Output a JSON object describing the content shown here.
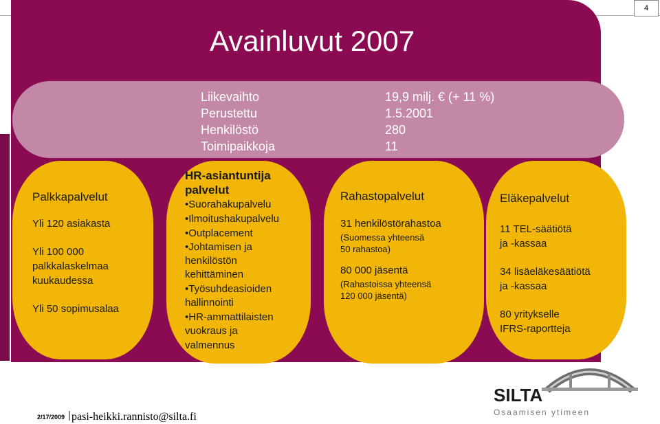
{
  "page_number": "4",
  "title": "Avainluvut 2007",
  "info": {
    "rows": [
      {
        "label": "Liikevaihto",
        "value": "19,9 milj. € (+ 11 %)"
      },
      {
        "label": "Perustettu",
        "value": "1.5.2001"
      },
      {
        "label": "Henkilöstö",
        "value": "280"
      },
      {
        "label": "Toimipaikkoja",
        "value": "11"
      }
    ]
  },
  "cards": {
    "palkka": {
      "heading": "Palkkapalvelut",
      "lines": [
        "Yli 120 asiakasta",
        "Yli 100 000",
        "palkkalaskelmaa",
        "kuukaudessa",
        "Yli 50 sopimusalaa"
      ]
    },
    "hr": {
      "heading1": "HR-asiantuntija",
      "heading2": "palvelut",
      "lines": [
        "•Suorahakupalvelu",
        "•Ilmoitushakupalvelu",
        "•Outplacement",
        "•Johtamisen ja",
        "henkilöstön",
        "kehittäminen",
        "•Työsuhdeasioiden",
        "hallinnointi",
        "•HR-ammattilaisten",
        "vuokraus ja",
        "valmennus"
      ]
    },
    "rahasto": {
      "heading": "Rahastopalvelut",
      "line1": "31 henkilöstörahastoa",
      "small1": "(Suomessa yhteensä",
      "small2": "50 rahastoa)",
      "line2": "80 000 jäsentä",
      "small3": "(Rahastoissa yhteensä",
      "small4": "120 000 jäsentä)"
    },
    "elake": {
      "heading": "Eläkepalvelut",
      "lines": [
        "11 TEL-säätiötä",
        "ja -kassaa",
        "34 lisäeläkesäätiötä",
        "ja -kassaa",
        "80 yritykselle",
        "IFRS-raportteja"
      ]
    }
  },
  "footer": {
    "date": "2/17/2009",
    "email": "pasi-heikki.rannisto@silta.fi"
  },
  "logo": {
    "wordmark": "SILTA",
    "tagline": "Osaamisen ytimeen"
  },
  "colors": {
    "panel": "#8b0b52",
    "band": "#c388a6",
    "card": "#f2b609"
  }
}
